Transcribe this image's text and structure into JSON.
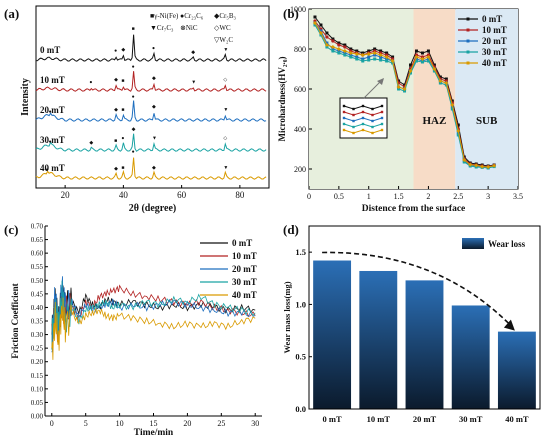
{
  "panels": {
    "a": {
      "label": "(a)"
    },
    "b": {
      "label": "(b)"
    },
    "c": {
      "label": "(c)"
    },
    "d": {
      "label": "(d)"
    }
  },
  "colors": {
    "0 mT": "#111111",
    "10 mT": "#b22222",
    "20 mT": "#1f6fbf",
    "30 mT": "#1aa3a3",
    "40 mT": "#d99a00",
    "czBand": "#e7efdd",
    "hazBand": "#f7dcc7",
    "subBand": "#dbe9f4",
    "barTop": "#2b6fb6",
    "barBottom": "#0b1a2c"
  },
  "chart_data": [
    {
      "type": "line",
      "panel": "a",
      "xlabel": "2θ (degree)",
      "ylabel": "Intensity",
      "xlim": [
        10,
        90
      ],
      "xticks": [
        20,
        40,
        60,
        80
      ],
      "legend": [
        {
          "symbol": "■",
          "text": "γ-Ni(Fe)"
        },
        {
          "symbol": "●",
          "text": "Cr₂₃C₆"
        },
        {
          "symbol": "◆",
          "text": "Cr₅B₃"
        },
        {
          "symbol": "▼",
          "text": "Cr₇C₃"
        },
        {
          "symbol": "⊗",
          "text": "NiC"
        },
        {
          "symbol": "◇",
          "text": "WC"
        },
        {
          "symbol": "▽",
          "text": "W₂C"
        }
      ],
      "series": [
        {
          "name": "0 mT",
          "peaks": [
            [
              37.5,
              1.5
            ],
            [
              40,
              2
            ],
            [
              43.5,
              10
            ],
            [
              50.5,
              2.5
            ],
            [
              64,
              1
            ],
            [
              75,
              2
            ]
          ]
        },
        {
          "name": "10 mT",
          "peaks": [
            [
              29,
              1
            ],
            [
              37.5,
              2
            ],
            [
              40,
              1.5
            ],
            [
              43.5,
              7
            ],
            [
              50.5,
              2.5
            ],
            [
              64,
              1
            ],
            [
              75,
              2
            ]
          ]
        },
        {
          "name": "20 mT",
          "peaks": [
            [
              15,
              1.2
            ],
            [
              37.5,
              2
            ],
            [
              40,
              2
            ],
            [
              43.5,
              7
            ],
            [
              50.5,
              3
            ],
            [
              75,
              2
            ]
          ]
        },
        {
          "name": "30 mT",
          "peaks": [
            [
              15,
              1.2
            ],
            [
              29,
              0.8
            ],
            [
              37.5,
              1.5
            ],
            [
              40,
              2.5
            ],
            [
              43.5,
              6
            ],
            [
              50.5,
              2.5
            ],
            [
              75,
              2.5
            ]
          ]
        },
        {
          "name": "40 mT",
          "peaks": [
            [
              14,
              1.2
            ],
            [
              37.5,
              1.5
            ],
            [
              40,
              2
            ],
            [
              43.5,
              8
            ],
            [
              50.5,
              2
            ],
            [
              75,
              2
            ]
          ]
        }
      ]
    },
    {
      "type": "line",
      "panel": "b",
      "xlabel": "Distence from the surface",
      "ylabel": "Microhardness(HV₂.₀)",
      "xlim": [
        0,
        3.5
      ],
      "ylim": [
        100,
        1000
      ],
      "xticks": [
        0,
        0.5,
        1,
        1.5,
        2,
        2.5,
        3,
        3.5
      ],
      "yticks": [
        200,
        400,
        600,
        800,
        1000
      ],
      "regions": [
        {
          "name": "CZ",
          "from": 0,
          "to": 1.75
        },
        {
          "name": "HAZ",
          "from": 1.75,
          "to": 2.45
        },
        {
          "name": "SUB",
          "from": 2.45,
          "to": 3.5
        }
      ],
      "x": [
        0.1,
        0.2,
        0.3,
        0.4,
        0.5,
        0.6,
        0.7,
        0.8,
        0.9,
        1.0,
        1.1,
        1.2,
        1.3,
        1.4,
        1.5,
        1.6,
        1.7,
        1.8,
        1.9,
        2.0,
        2.1,
        2.2,
        2.3,
        2.4,
        2.5,
        2.6,
        2.7,
        2.8,
        2.9,
        3.0,
        3.1
      ],
      "series": [
        {
          "name": "0 mT",
          "values": [
            960,
            920,
            880,
            850,
            830,
            820,
            800,
            790,
            780,
            790,
            800,
            790,
            780,
            760,
            640,
            620,
            720,
            790,
            780,
            790,
            720,
            660,
            650,
            540,
            420,
            260,
            230,
            225,
            220,
            215,
            220
          ]
        },
        {
          "name": "10 mT",
          "values": [
            940,
            900,
            860,
            840,
            820,
            810,
            790,
            780,
            770,
            780,
            790,
            780,
            770,
            750,
            630,
            610,
            700,
            770,
            760,
            770,
            710,
            650,
            640,
            530,
            400,
            250,
            225,
            220,
            215,
            212,
            218
          ]
        },
        {
          "name": "20 mT",
          "values": [
            930,
            890,
            830,
            800,
            790,
            780,
            770,
            760,
            750,
            760,
            770,
            760,
            750,
            740,
            610,
            600,
            690,
            750,
            740,
            750,
            700,
            640,
            630,
            510,
            380,
            240,
            220,
            215,
            210,
            208,
            215
          ]
        },
        {
          "name": "30 mT",
          "values": [
            920,
            870,
            810,
            790,
            780,
            770,
            760,
            750,
            740,
            745,
            750,
            745,
            740,
            730,
            600,
            590,
            680,
            740,
            735,
            740,
            690,
            630,
            620,
            500,
            370,
            235,
            215,
            210,
            208,
            205,
            212
          ]
        },
        {
          "name": "40 mT",
          "values": [
            930,
            880,
            820,
            810,
            800,
            790,
            780,
            775,
            770,
            775,
            780,
            770,
            760,
            740,
            610,
            600,
            690,
            760,
            750,
            760,
            700,
            640,
            630,
            520,
            390,
            245,
            222,
            218,
            212,
            210,
            216
          ]
        }
      ]
    },
    {
      "type": "line",
      "panel": "c",
      "xlabel": "Time/min",
      "ylabel": "Friction Coefficient",
      "xlim": [
        -1,
        31
      ],
      "ylim": [
        0,
        0.7
      ],
      "xticks": [
        0,
        5,
        10,
        15,
        20,
        25,
        30
      ],
      "yticks": [
        0.0,
        0.05,
        0.1,
        0.15,
        0.2,
        0.25,
        0.3,
        0.35,
        0.4,
        0.45,
        0.5,
        0.55,
        0.6,
        0.65,
        0.7
      ],
      "x": [
        0,
        0.5,
        1,
        1.5,
        2,
        3,
        4,
        5,
        6,
        7,
        8,
        9,
        10,
        12,
        14,
        16,
        18,
        20,
        22,
        24,
        26,
        28,
        30
      ],
      "series": [
        {
          "name": "0 mT",
          "values": [
            0.3,
            0.42,
            0.35,
            0.45,
            0.4,
            0.42,
            0.38,
            0.44,
            0.41,
            0.4,
            0.43,
            0.42,
            0.41,
            0.42,
            0.41,
            0.4,
            0.41,
            0.4,
            0.41,
            0.4,
            0.39,
            0.4,
            0.39
          ]
        },
        {
          "name": "10 mT",
          "values": [
            0.28,
            0.4,
            0.3,
            0.42,
            0.38,
            0.4,
            0.36,
            0.42,
            0.4,
            0.44,
            0.45,
            0.46,
            0.47,
            0.45,
            0.44,
            0.43,
            0.42,
            0.41,
            0.42,
            0.4,
            0.39,
            0.38,
            0.37
          ]
        },
        {
          "name": "20 mT",
          "values": [
            0.25,
            0.45,
            0.32,
            0.48,
            0.4,
            0.42,
            0.37,
            0.41,
            0.39,
            0.4,
            0.41,
            0.42,
            0.4,
            0.41,
            0.4,
            0.41,
            0.42,
            0.41,
            0.4,
            0.39,
            0.38,
            0.38,
            0.37
          ]
        },
        {
          "name": "30 mT",
          "values": [
            0.3,
            0.38,
            0.34,
            0.44,
            0.36,
            0.4,
            0.35,
            0.39,
            0.4,
            0.41,
            0.42,
            0.4,
            0.41,
            0.4,
            0.42,
            0.41,
            0.43,
            0.42,
            0.44,
            0.41,
            0.4,
            0.39,
            0.38
          ]
        },
        {
          "name": "40 mT",
          "values": [
            0.22,
            0.36,
            0.28,
            0.4,
            0.33,
            0.38,
            0.34,
            0.37,
            0.38,
            0.39,
            0.37,
            0.36,
            0.37,
            0.36,
            0.35,
            0.34,
            0.33,
            0.34,
            0.33,
            0.34,
            0.33,
            0.35,
            0.36
          ]
        }
      ]
    },
    {
      "type": "bar",
      "panel": "d",
      "ylabel": "Wear mass loss(mg)",
      "ylim": [
        0,
        1.75
      ],
      "yticks": [
        0.0,
        0.5,
        1.0,
        1.5
      ],
      "categories": [
        "0 mT",
        "10 mT",
        "20 mT",
        "30 mT",
        "40 mT"
      ],
      "series": [
        {
          "name": "Wear loss",
          "values": [
            1.42,
            1.32,
            1.23,
            0.99,
            0.74
          ]
        }
      ]
    }
  ]
}
